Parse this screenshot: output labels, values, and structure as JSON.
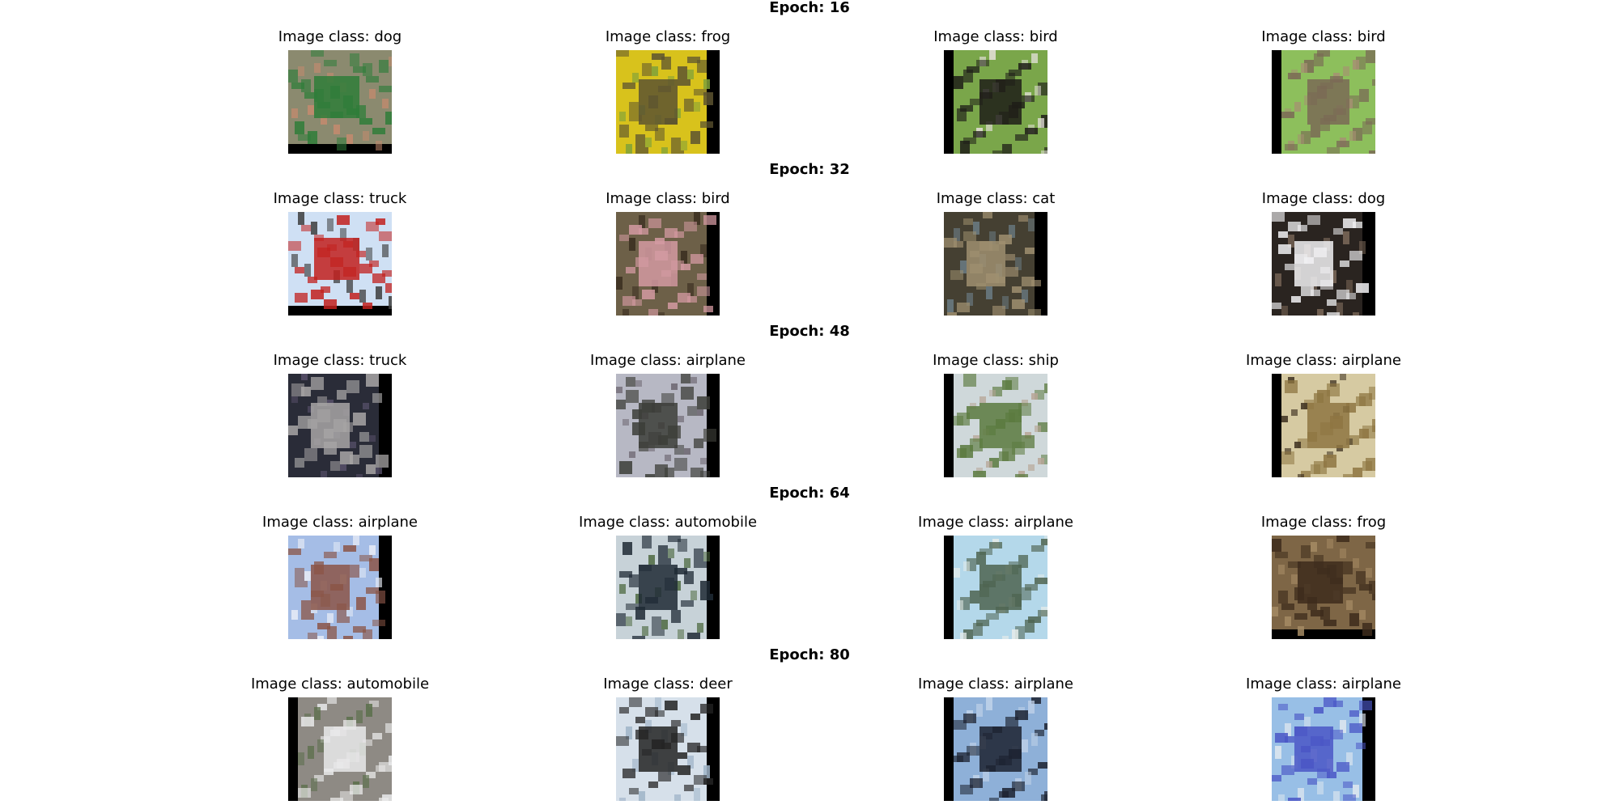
{
  "rows": [
    {
      "epoch_label": "Epoch: 16",
      "images": [
        {
          "caption": "Image class: dog",
          "pad": "bottom",
          "colors": [
            "#8b8a6f",
            "#2f7d3a",
            "#c48a6e"
          ]
        },
        {
          "caption": "Image class: frog",
          "pad": "right",
          "colors": [
            "#d8c21c",
            "#5d5430",
            "#7fa13a"
          ]
        },
        {
          "caption": "Image class: bird",
          "pad": "left",
          "colors": [
            "#7aa64a",
            "#1f1d18",
            "#e6e1dc"
          ]
        },
        {
          "caption": "Image class: bird",
          "pad": "left",
          "colors": [
            "#8dbf5c",
            "#7a6a55",
            "#a69072"
          ]
        }
      ]
    },
    {
      "epoch_label": "Epoch: 32",
      "images": [
        {
          "caption": "Image class: truck",
          "pad": "bottom",
          "colors": [
            "#cfe0f4",
            "#c2201d",
            "#3d3d3d"
          ]
        },
        {
          "caption": "Image class: bird",
          "pad": "right",
          "colors": [
            "#6d6048",
            "#d49aa2",
            "#3a2e20"
          ]
        },
        {
          "caption": "Image class: cat",
          "pad": "right",
          "colors": [
            "#454032",
            "#9f8f70",
            "#6b7c85"
          ]
        },
        {
          "caption": "Image class: dog",
          "pad": "right",
          "colors": [
            "#2a2420",
            "#f1f1f3",
            "#7d6a5a"
          ]
        }
      ]
    },
    {
      "epoch_label": "Epoch: 48",
      "images": [
        {
          "caption": "Image class: truck",
          "pad": "right",
          "colors": [
            "#2a2c38",
            "#a8a6a6",
            "#57506a"
          ]
        },
        {
          "caption": "Image class: airplane",
          "pad": "right",
          "colors": [
            "#b7b8c4",
            "#3c3d38",
            "#6c6570"
          ]
        },
        {
          "caption": "Image class: ship",
          "pad": "left",
          "colors": [
            "#cfd8da",
            "#5b7a3e",
            "#b7a695"
          ]
        },
        {
          "caption": "Image class: airplane",
          "pad": "left",
          "colors": [
            "#d6caa2",
            "#8e7642",
            "#3d3020"
          ]
        }
      ]
    },
    {
      "epoch_label": "Epoch: 64",
      "images": [
        {
          "caption": "Image class: airplane",
          "pad": "right",
          "colors": [
            "#a5bde6",
            "#8b5546",
            "#e8ecf6"
          ]
        },
        {
          "caption": "Image class: automobile",
          "pad": "right",
          "colors": [
            "#c7d2d8",
            "#1f2a35",
            "#4e6a42"
          ]
        },
        {
          "caption": "Image class: airplane",
          "pad": "left",
          "colors": [
            "#b4d8ea",
            "#4e6450",
            "#e6ecea"
          ]
        },
        {
          "caption": "Image class: frog",
          "pad": "bottom",
          "colors": [
            "#7e6646",
            "#3d2c1c",
            "#a58b64"
          ]
        }
      ]
    },
    {
      "epoch_label": "Epoch: 80",
      "images": [
        {
          "caption": "Image class: automobile",
          "pad": "left",
          "colors": [
            "#8e8a84",
            "#e9e9ea",
            "#5a6e4a"
          ]
        },
        {
          "caption": "Image class: deer",
          "pad": "right",
          "colors": [
            "#d6e0ea",
            "#232323",
            "#9fb4c8"
          ]
        },
        {
          "caption": "Image class: airplane",
          "pad": "left",
          "colors": [
            "#8eb0d8",
            "#1c2230",
            "#c1d3ea"
          ]
        },
        {
          "caption": "Image class: airplane",
          "pad": "right",
          "colors": [
            "#98bfe6",
            "#4a56c6",
            "#dfe7ef"
          ]
        }
      ]
    }
  ]
}
